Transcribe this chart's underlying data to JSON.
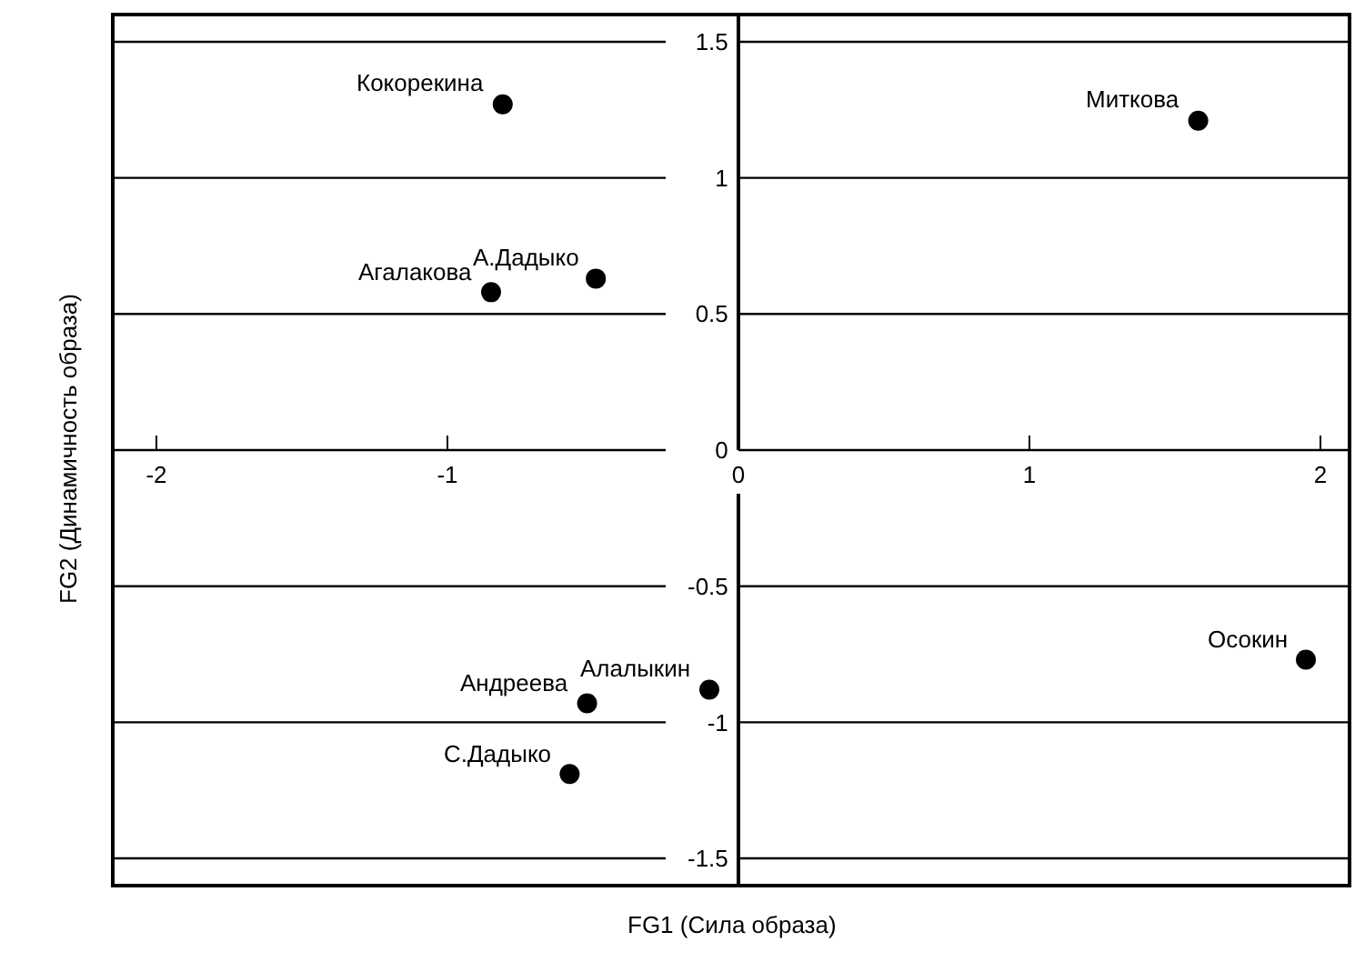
{
  "chart_data": {
    "type": "scatter",
    "xlabel": "FG1 (Сила образа)",
    "ylabel": "FG2 (Динамичность образа)",
    "series": [
      {
        "color": "#000000",
        "x": [
          -0.81,
          1.58,
          -0.85,
          -0.49,
          -0.52,
          -0.1,
          1.95,
          -0.58
        ],
        "values": [
          1.27,
          1.21,
          0.58,
          0.63,
          -0.93,
          -0.88,
          -0.77,
          -1.19
        ]
      }
    ],
    "annotations": [
      {
        "text": "Кокорекина",
        "x": -0.81,
        "y": 1.27
      },
      {
        "text": "Миткова",
        "x": 1.58,
        "y": 1.21
      },
      {
        "text": "Агалакова",
        "x": -0.85,
        "y": 0.58
      },
      {
        "text": "А.Дадыко",
        "x": -0.49,
        "y": 0.63
      },
      {
        "text": "Андреева",
        "x": -0.52,
        "y": -0.93
      },
      {
        "text": "Алалыкин",
        "x": -0.1,
        "y": -0.88
      },
      {
        "text": "Осокин",
        "x": 1.95,
        "y": -0.77
      },
      {
        "text": "С.Дадыко",
        "x": -0.58,
        "y": -1.19
      }
    ],
    "xlim": [
      -2.15,
      2.1
    ],
    "ylim": [
      -1.6,
      1.6
    ],
    "xticks": [
      -2,
      -1,
      0,
      1,
      2
    ],
    "yticks": [
      -1.5,
      -1,
      -0.5,
      0,
      0.5,
      1,
      1.5
    ],
    "grid": "y",
    "marker": "circle"
  }
}
